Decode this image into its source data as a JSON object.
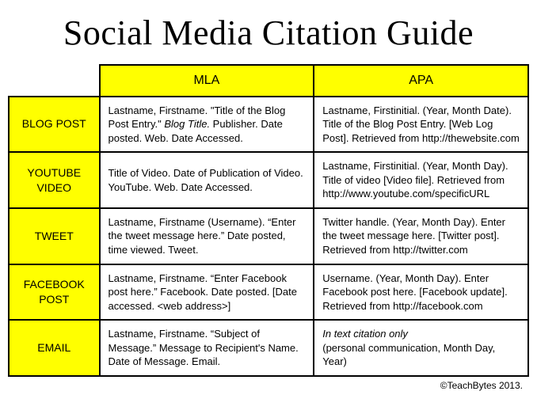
{
  "title": "Social Media Citation Guide",
  "columns": [
    "MLA",
    "APA"
  ],
  "rows": [
    {
      "label": "BLOG POST",
      "mla_parts": [
        "Lastname, Firstname. \"Title of the Blog Post Entry.\" ",
        {
          "em": "Blog Title."
        },
        " Publisher. Date posted. Web. Date Accessed."
      ],
      "apa": "Lastname, Firstinitial. (Year, Month Date). Title of the Blog Post Entry. [Web Log Post]. Retrieved from http://thewebsite.com"
    },
    {
      "label": "YOUTUBE VIDEO",
      "mla": "Title of Video. Date of Publication of Video. YouTube. Web. Date Accessed.",
      "apa": "Lastname, Firstinitial. (Year, Month Day). Title of video [Video file]. Retrieved from http://www.youtube.com/specificURL"
    },
    {
      "label": "TWEET",
      "mla": "Lastname, Firstname (Username). “Enter the tweet message here.” Date posted, time viewed. Tweet.",
      "apa": "Twitter handle. (Year, Month Day). Enter the tweet message here. [Twitter post]. Retrieved from http://twitter.com"
    },
    {
      "label": "FACEBOOK POST",
      "mla": "Lastname, Firstname. “Enter Facebook post here.” Facebook. Date posted. [Date accessed. <web address>]",
      "apa": "Username. (Year, Month Day). Enter Facebook post here. [Facebook update]. Retrieved from http://facebook.com"
    },
    {
      "label": "EMAIL",
      "mla": "Lastname, Firstname. “Subject of Message.” Message to Recipient's Name. Date of Message. Email.",
      "apa_parts": [
        {
          "em": "In text citation only"
        },
        {
          "br": true
        },
        "(personal communication, Month Day, Year)"
      ]
    }
  ],
  "credit": "©TeachBytes 2013.",
  "styles": {
    "highlight_bg": "#ffff00",
    "border_color": "#000000",
    "title_font": "cursive",
    "title_fontsize": 44,
    "body_fontsize": 13,
    "header_fontsize": 16,
    "rowlabel_fontsize": 14
  }
}
